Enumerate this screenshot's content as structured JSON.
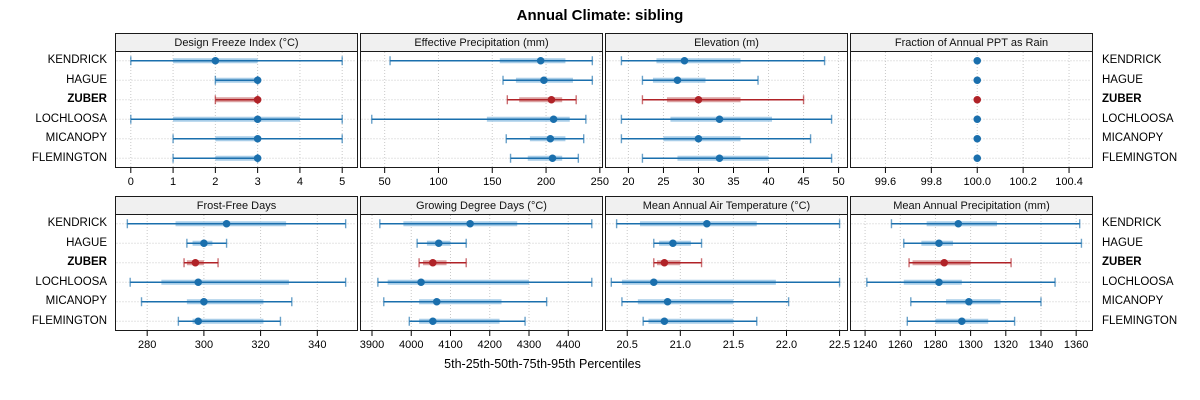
{
  "title": "Annual Climate: sibling",
  "xlabel": "5th-25th-50th-75th-95th Percentiles",
  "sites": [
    {
      "name": "KENDRICK",
      "highlight": false
    },
    {
      "name": "HAGUE",
      "highlight": false
    },
    {
      "name": "ZUBER",
      "highlight": true
    },
    {
      "name": "LOCHLOOSA",
      "highlight": false
    },
    {
      "name": "MICANOPY",
      "highlight": false
    },
    {
      "name": "FLEMINGTON",
      "highlight": false
    }
  ],
  "colors": {
    "series_dark": "#1a6fad",
    "series_light": "#a8cde8",
    "highlight_dark": "#b02227",
    "highlight_light": "#dba1a1",
    "grid": "#c9c9c9",
    "border": "#1a1a1a",
    "strip_bg": "#f0f0f0",
    "tick_text": "#000000"
  },
  "chart_data": [
    {
      "type": "dotplot",
      "row": 0,
      "title": "Design Freeze Index (°C)",
      "percentile_scheme": [
        5,
        25,
        50,
        75,
        95
      ],
      "tick_values": [
        0,
        1,
        2,
        3,
        4,
        5
      ],
      "tick_labels": [
        "0",
        "1",
        "2",
        "3",
        "4",
        "5"
      ],
      "range": [
        -0.35,
        5.35
      ],
      "series": [
        {
          "site": "KENDRICK",
          "p": [
            0,
            1,
            2,
            3,
            5
          ]
        },
        {
          "site": "HAGUE",
          "p": [
            2,
            2,
            3,
            3,
            3
          ]
        },
        {
          "site": "ZUBER",
          "p": [
            2,
            2,
            3,
            3,
            3
          ]
        },
        {
          "site": "LOCHLOOSA",
          "p": [
            0,
            1,
            3,
            4,
            5
          ]
        },
        {
          "site": "MICANOPY",
          "p": [
            1,
            2,
            3,
            3,
            5
          ]
        },
        {
          "site": "FLEMINGTON",
          "p": [
            1,
            2,
            3,
            3,
            3
          ]
        }
      ]
    },
    {
      "type": "dotplot",
      "row": 0,
      "title": "Effective Precipitation (mm)",
      "percentile_scheme": [
        5,
        25,
        50,
        75,
        95
      ],
      "tick_values": [
        50,
        100,
        150,
        200,
        250
      ],
      "tick_labels": [
        "50",
        "100",
        "150",
        "200",
        "250"
      ],
      "range": [
        28,
        252
      ],
      "series": [
        {
          "site": "KENDRICK",
          "p": [
            55,
            157,
            195,
            218,
            243
          ]
        },
        {
          "site": "HAGUE",
          "p": [
            160,
            172,
            198,
            225,
            243
          ]
        },
        {
          "site": "ZUBER",
          "p": [
            164,
            175,
            205,
            215,
            228
          ]
        },
        {
          "site": "LOCHLOOSA",
          "p": [
            38,
            145,
            207,
            222,
            237
          ]
        },
        {
          "site": "MICANOPY",
          "p": [
            163,
            185,
            204,
            218,
            235
          ]
        },
        {
          "site": "FLEMINGTON",
          "p": [
            167,
            183,
            206,
            215,
            230
          ]
        }
      ]
    },
    {
      "type": "dotplot",
      "row": 0,
      "title": "Elevation (m)",
      "percentile_scheme": [
        5,
        25,
        50,
        75,
        95
      ],
      "tick_values": [
        20,
        25,
        30,
        35,
        40,
        45,
        50
      ],
      "tick_labels": [
        "20",
        "25",
        "30",
        "35",
        "40",
        "45",
        "50"
      ],
      "range": [
        16.8,
        51.2
      ],
      "series": [
        {
          "site": "KENDRICK",
          "p": [
            19,
            24,
            28,
            36,
            48
          ]
        },
        {
          "site": "HAGUE",
          "p": [
            22,
            23.5,
            27,
            31,
            38.5
          ]
        },
        {
          "site": "ZUBER",
          "p": [
            22,
            25.5,
            30,
            36,
            45
          ]
        },
        {
          "site": "LOCHLOOSA",
          "p": [
            19,
            26,
            33,
            40.5,
            49
          ]
        },
        {
          "site": "MICANOPY",
          "p": [
            19,
            25,
            30,
            36,
            46
          ]
        },
        {
          "site": "FLEMINGTON",
          "p": [
            22,
            27,
            33,
            40,
            49
          ]
        }
      ]
    },
    {
      "type": "dotplot",
      "row": 0,
      "title": "Fraction of Annual PPT as Rain",
      "percentile_scheme": [
        5,
        25,
        50,
        75,
        95
      ],
      "tick_values": [
        99.6,
        99.8,
        100.0,
        100.2,
        100.4
      ],
      "tick_labels": [
        "99.6",
        "99.8",
        "100.0",
        "100.2",
        "100.4"
      ],
      "range": [
        99.45,
        100.5
      ],
      "series": [
        {
          "site": "KENDRICK",
          "p": [
            100,
            100,
            100,
            100,
            100
          ]
        },
        {
          "site": "HAGUE",
          "p": [
            100,
            100,
            100,
            100,
            100
          ]
        },
        {
          "site": "ZUBER",
          "p": [
            100,
            100,
            100,
            100,
            100
          ]
        },
        {
          "site": "LOCHLOOSA",
          "p": [
            100,
            100,
            100,
            100,
            100
          ]
        },
        {
          "site": "MICANOPY",
          "p": [
            100,
            100,
            100,
            100,
            100
          ]
        },
        {
          "site": "FLEMINGTON",
          "p": [
            100,
            100,
            100,
            100,
            100
          ]
        }
      ]
    },
    {
      "type": "dotplot",
      "row": 1,
      "title": "Frost-Free Days",
      "percentile_scheme": [
        5,
        25,
        50,
        75,
        95
      ],
      "tick_values": [
        280,
        300,
        320,
        340
      ],
      "tick_labels": [
        "280",
        "300",
        "320",
        "340"
      ],
      "range": [
        269,
        354
      ],
      "series": [
        {
          "site": "KENDRICK",
          "p": [
            273,
            290,
            308,
            329,
            350
          ]
        },
        {
          "site": "HAGUE",
          "p": [
            294,
            296,
            300,
            303,
            308
          ]
        },
        {
          "site": "ZUBER",
          "p": [
            293,
            294,
            297,
            300,
            305
          ]
        },
        {
          "site": "LOCHLOOSA",
          "p": [
            274,
            285,
            298,
            330,
            350
          ]
        },
        {
          "site": "MICANOPY",
          "p": [
            278,
            294,
            300,
            321,
            331
          ]
        },
        {
          "site": "FLEMINGTON",
          "p": [
            291,
            296,
            298,
            321,
            327
          ]
        }
      ]
    },
    {
      "type": "dotplot",
      "row": 1,
      "title": "Growing Degree Days (°C)",
      "percentile_scheme": [
        5,
        25,
        50,
        75,
        95
      ],
      "tick_values": [
        3900,
        4000,
        4100,
        4200,
        4300,
        4400
      ],
      "tick_labels": [
        "3900",
        "4000",
        "4100",
        "4200",
        "4300",
        "4400"
      ],
      "range": [
        3872,
        4486
      ],
      "series": [
        {
          "site": "KENDRICK",
          "p": [
            3920,
            3980,
            4150,
            4270,
            4460
          ]
        },
        {
          "site": "HAGUE",
          "p": [
            4015,
            4040,
            4070,
            4100,
            4140
          ]
        },
        {
          "site": "ZUBER",
          "p": [
            4020,
            4030,
            4055,
            4090,
            4140
          ]
        },
        {
          "site": "LOCHLOOSA",
          "p": [
            3915,
            3940,
            4025,
            4300,
            4460
          ]
        },
        {
          "site": "MICANOPY",
          "p": [
            3930,
            4020,
            4065,
            4230,
            4345
          ]
        },
        {
          "site": "FLEMINGTON",
          "p": [
            3995,
            4020,
            4055,
            4225,
            4290
          ]
        }
      ]
    },
    {
      "type": "dotplot",
      "row": 1,
      "title": "Mean Annual Air Temperature (°C)",
      "percentile_scheme": [
        5,
        25,
        50,
        75,
        95
      ],
      "tick_values": [
        20.5,
        21.0,
        21.5,
        22.0,
        22.5
      ],
      "tick_labels": [
        "20.5",
        "21.0",
        "21.5",
        "22.0",
        "22.5"
      ],
      "range": [
        20.3,
        22.57
      ],
      "series": [
        {
          "site": "KENDRICK",
          "p": [
            20.4,
            20.62,
            21.25,
            21.72,
            22.5
          ]
        },
        {
          "site": "HAGUE",
          "p": [
            20.75,
            20.8,
            20.93,
            21.1,
            21.2
          ]
        },
        {
          "site": "ZUBER",
          "p": [
            20.75,
            20.78,
            20.85,
            21.0,
            21.2
          ]
        },
        {
          "site": "LOCHLOOSA",
          "p": [
            20.35,
            20.45,
            20.75,
            21.9,
            22.5
          ]
        },
        {
          "site": "MICANOPY",
          "p": [
            20.45,
            20.6,
            20.88,
            21.5,
            22.02
          ]
        },
        {
          "site": "FLEMINGTON",
          "p": [
            20.65,
            20.7,
            20.85,
            21.5,
            21.72
          ]
        }
      ]
    },
    {
      "type": "dotplot",
      "row": 1,
      "title": "Mean Annual Precipitation (mm)",
      "percentile_scheme": [
        5,
        25,
        50,
        75,
        95
      ],
      "tick_values": [
        1240,
        1260,
        1280,
        1300,
        1320,
        1340,
        1360
      ],
      "tick_labels": [
        "1240",
        "1260",
        "1280",
        "1300",
        "1320",
        "1340",
        "1360"
      ],
      "range": [
        1232,
        1369
      ],
      "series": [
        {
          "site": "KENDRICK",
          "p": [
            1255,
            1275,
            1293,
            1315,
            1362
          ]
        },
        {
          "site": "HAGUE",
          "p": [
            1262,
            1272,
            1282,
            1290,
            1363
          ]
        },
        {
          "site": "ZUBER",
          "p": [
            1265,
            1267,
            1285,
            1300,
            1323
          ]
        },
        {
          "site": "LOCHLOOSA",
          "p": [
            1241,
            1262,
            1282,
            1295,
            1348
          ]
        },
        {
          "site": "MICANOPY",
          "p": [
            1266,
            1286,
            1299,
            1317,
            1340
          ]
        },
        {
          "site": "FLEMINGTON",
          "p": [
            1264,
            1280,
            1295,
            1310,
            1325
          ]
        }
      ]
    }
  ]
}
